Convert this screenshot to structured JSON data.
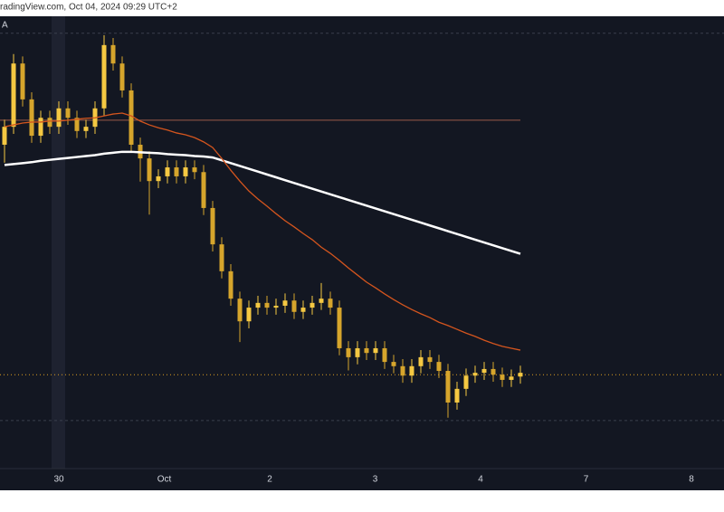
{
  "chart_data": {
    "type": "candlestick",
    "header": "radingView.com, Oct 04, 2024 09:29 UTC+2",
    "corner_label": "A",
    "xtick_labels": [
      "30",
      "Oct",
      "2",
      "3",
      "4",
      "7",
      "8"
    ],
    "ylim": [
      0,
      100
    ],
    "up_color": "#f5c842",
    "down_color": "#d6a52c",
    "open": [
      72.8,
      76.6,
      90,
      82.4,
      74.7,
      78.5,
      76.6,
      80.5,
      78.5,
      75.7,
      76.6,
      80.5,
      93.9,
      90,
      84.3,
      72.8,
      69.9,
      65.1,
      66.1,
      68,
      66.1,
      68,
      67,
      59.4,
      51.7,
      46,
      40.2,
      35.4,
      38.3,
      39.3,
      38.3,
      38.7,
      39.8,
      37.4,
      38.3,
      39.3,
      40.2,
      38.3,
      29.7,
      27.8,
      29.7,
      28.7,
      29.7,
      26.8,
      25.9,
      23.9,
      25.9,
      27.8,
      26.8,
      24.9,
      18.2,
      21.1,
      23.9,
      24.5,
      25.3,
      24.1,
      23,
      23.7
    ],
    "high": [
      78.1,
      92,
      91.5,
      83.9,
      80,
      80,
      82,
      82,
      80,
      78.1,
      82,
      96,
      95.4,
      91.5,
      85.8,
      74.3,
      71.4,
      67.6,
      69.5,
      69.5,
      69.5,
      69.5,
      68.5,
      60.9,
      53.2,
      47.5,
      41.7,
      39.8,
      40.8,
      40.8,
      40.2,
      41.3,
      41.3,
      39.8,
      40.8,
      43.5,
      41.7,
      39.8,
      31.2,
      31.2,
      31.2,
      31.2,
      31.2,
      28.3,
      27.4,
      27.4,
      29.3,
      29.3,
      28.3,
      26.4,
      22.6,
      25.4,
      26,
      26.8,
      26.8,
      25.6,
      25.2,
      26
    ],
    "low": [
      69,
      75.1,
      80.9,
      73.2,
      73.2,
      75.1,
      75.1,
      77,
      74.2,
      74.2,
      75.1,
      79,
      88.5,
      82.8,
      71.3,
      65,
      58,
      63.6,
      64.6,
      64.6,
      64.6,
      65.5,
      57.9,
      50.2,
      44.5,
      38.7,
      31,
      33.9,
      36.8,
      36.8,
      36.8,
      37.2,
      35.9,
      35.9,
      36.8,
      37.8,
      36.8,
      28.2,
      25,
      26.3,
      27.2,
      27.2,
      25.3,
      24.4,
      22.4,
      22.4,
      24.4,
      25.3,
      23.4,
      15,
      16.7,
      19.6,
      22.4,
      23,
      22.6,
      21.5,
      21.5,
      22.2
    ],
    "close": [
      76.6,
      90,
      82.4,
      74.7,
      78.5,
      76.6,
      80.5,
      78.5,
      75.7,
      76.6,
      80.5,
      93.9,
      90,
      84.3,
      72.8,
      69.9,
      65.1,
      66.1,
      68,
      66.1,
      68,
      67,
      59.4,
      51.7,
      46,
      40.2,
      35.4,
      38.3,
      39.3,
      38.3,
      38.7,
      39.8,
      37.4,
      38.3,
      39.3,
      40.2,
      38.3,
      29.7,
      27.8,
      29.7,
      28.7,
      29.7,
      26.8,
      25.9,
      23.9,
      25.9,
      27.8,
      26.8,
      24.9,
      18.2,
      21.1,
      23.9,
      24.5,
      25.3,
      24.1,
      23,
      23.7,
      24.5
    ],
    "lines": [
      {
        "color": "#ffffff",
        "values": [
          68.5,
          68.7,
          68.9,
          69.1,
          69.4,
          69.6,
          69.8,
          70,
          70.2,
          70.4,
          70.6,
          70.9,
          71.1,
          71.3,
          71.3,
          71.2,
          71.1,
          71,
          70.8,
          70.7,
          70.6,
          70.4,
          70.3,
          70.1,
          69.5,
          68.9,
          68.3,
          67.7,
          67.1,
          66.5,
          65.9,
          65.3,
          64.7,
          64.1,
          63.5,
          62.9,
          62.3,
          61.7,
          61.1,
          60.5,
          59.9,
          59.3,
          58.7,
          58.1,
          57.5,
          56.9,
          56.3,
          55.7,
          55.1,
          54.5,
          53.9,
          53.3,
          52.7,
          52.1,
          51.5,
          50.9,
          50.3,
          49.7
        ]
      },
      {
        "color": "#d4551e",
        "values": [
          76.6,
          77,
          77.4,
          77.6,
          77.6,
          77.8,
          77.8,
          78,
          78.2,
          78.4,
          78.5,
          78.9,
          79.3,
          79.5,
          78.9,
          77.8,
          77,
          76.4,
          75.9,
          75.3,
          74.9,
          74.3,
          73.4,
          72.2,
          69.9,
          67.4,
          65.1,
          63,
          61.3,
          59.8,
          58.2,
          56.7,
          55.4,
          54,
          52.7,
          51.1,
          49.8,
          48.3,
          46.7,
          45.2,
          43.7,
          42.5,
          41.2,
          40,
          38.9,
          37.9,
          37,
          36.2,
          35.2,
          34.5,
          33.7,
          32.9,
          32.2,
          31.4,
          30.7,
          30.1,
          29.7,
          29.3
        ]
      }
    ],
    "hlines": [
      {
        "value": 78,
        "color": "#9a5a48",
        "style": "solid",
        "extent": "data"
      },
      {
        "value": 24.1,
        "color": "#e0a020",
        "style": "dotted",
        "extent": "full"
      },
      {
        "value": 96.4,
        "color": "#3a3f4d",
        "style": "dashed",
        "extent": "full"
      },
      {
        "value": 14.4,
        "color": "#3a3f4d",
        "style": "dashed",
        "extent": "full"
      }
    ]
  }
}
